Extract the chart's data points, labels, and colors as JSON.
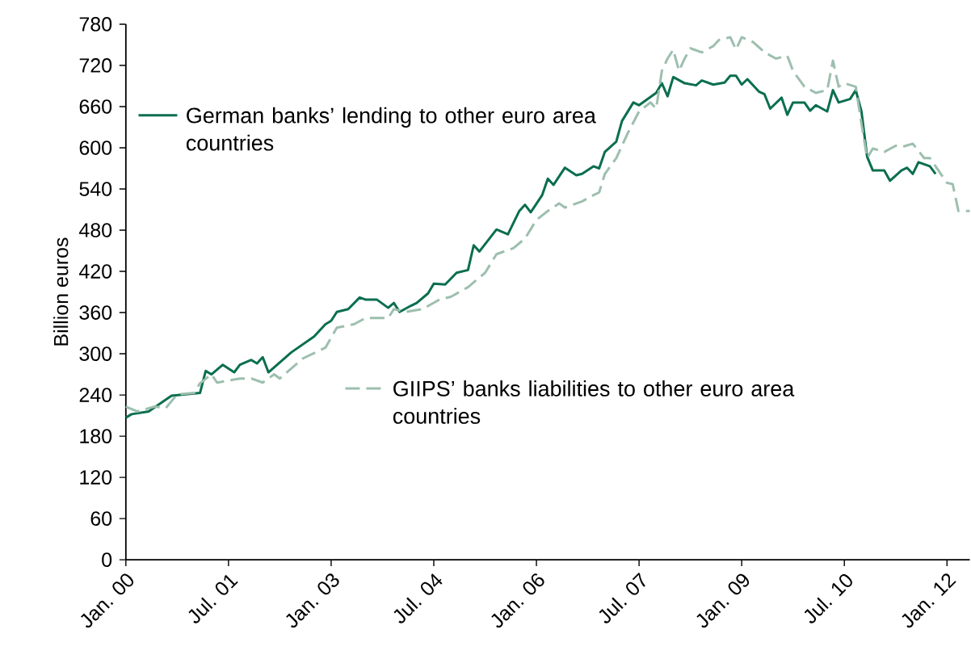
{
  "chart_data": {
    "type": "line",
    "ylabel": "Billion euros",
    "xlim": [
      "2000-01",
      "2012-05"
    ],
    "ylim": [
      0,
      780
    ],
    "xticks": [
      {
        "value": "2000-01",
        "label": "Jan. 00"
      },
      {
        "value": "2001-07",
        "label": "Jul. 01"
      },
      {
        "value": "2003-01",
        "label": "Jan. 03"
      },
      {
        "value": "2004-07",
        "label": "Jul. 04"
      },
      {
        "value": "2006-01",
        "label": "Jan. 06"
      },
      {
        "value": "2007-07",
        "label": "Jul. 07"
      },
      {
        "value": "2009-01",
        "label": "Jan. 09"
      },
      {
        "value": "2010-07",
        "label": "Jul. 10"
      },
      {
        "value": "2012-01",
        "label": "Jan. 12"
      }
    ],
    "yticks": [
      0,
      60,
      120,
      180,
      240,
      300,
      360,
      420,
      480,
      540,
      600,
      660,
      720,
      780
    ],
    "legend": "left",
    "grid": false,
    "marker": "none",
    "series": [
      {
        "name": "German banks’ lending to other euro area countries",
        "color": "#0a6e4f",
        "line_style": "solid",
        "x": [
          "2000-01",
          "2000-02",
          "2000-05",
          "2000-09",
          "2001-02",
          "2001-03",
          "2001-04",
          "2001-06",
          "2001-08",
          "2001-09",
          "2001-11",
          "2001-12",
          "2002-01",
          "2002-02",
          "2002-06",
          "2002-10",
          "2002-12",
          "2003-01",
          "2003-02",
          "2003-04",
          "2003-06",
          "2003-07",
          "2003-09",
          "2003-11",
          "2003-12",
          "2004-01",
          "2004-03",
          "2004-04",
          "2004-06",
          "2004-07",
          "2004-09",
          "2004-11",
          "2005-01",
          "2005-02",
          "2005-03",
          "2005-06",
          "2005-08",
          "2005-10",
          "2005-11",
          "2005-12",
          "2006-02",
          "2006-03",
          "2006-04",
          "2006-06",
          "2006-08",
          "2006-09",
          "2006-11",
          "2006-12",
          "2007-01",
          "2007-03",
          "2007-04",
          "2007-06",
          "2007-07",
          "2007-10",
          "2007-11",
          "2007-12",
          "2008-01",
          "2008-03",
          "2008-05",
          "2008-06",
          "2008-08",
          "2008-10",
          "2008-11",
          "2008-12",
          "2009-01",
          "2009-02",
          "2009-04",
          "2009-05",
          "2009-06",
          "2009-08",
          "2009-09",
          "2009-10",
          "2009-12",
          "2010-01",
          "2010-02",
          "2010-04",
          "2010-05",
          "2010-06",
          "2010-08",
          "2010-09",
          "2010-10",
          "2010-11",
          "2010-12",
          "2011-02",
          "2011-03",
          "2011-05",
          "2011-06",
          "2011-07",
          "2011-08",
          "2011-10",
          "2011-11"
        ],
        "values": [
          207,
          212,
          216,
          239,
          243,
          275,
          270,
          284,
          273,
          284,
          291,
          286,
          295,
          273,
          302,
          325,
          343,
          348,
          361,
          365,
          382,
          379,
          379,
          367,
          374,
          361,
          370,
          374,
          388,
          402,
          401,
          418,
          422,
          458,
          449,
          481,
          474,
          508,
          517,
          506,
          531,
          555,
          546,
          571,
          560,
          562,
          573,
          570,
          594,
          609,
          639,
          666,
          662,
          680,
          694,
          675,
          703,
          694,
          691,
          698,
          692,
          695,
          705,
          705,
          692,
          700,
          682,
          678,
          657,
          673,
          648,
          666,
          666,
          654,
          662,
          653,
          684,
          666,
          671,
          684,
          653,
          587,
          567,
          567,
          552,
          567,
          571,
          562,
          579,
          573,
          562
        ]
      },
      {
        "name": "GIIPS’ banks liabilities to other euro area countries",
        "color": "#9dbfae",
        "line_style": "dashed",
        "x": [
          "2000-01",
          "2000-03",
          "2000-06",
          "2000-08",
          "2000-10",
          "2001-01",
          "2001-02",
          "2001-04",
          "2001-05",
          "2001-09",
          "2001-11",
          "2002-01",
          "2002-03",
          "2002-04",
          "2002-08",
          "2002-12",
          "2003-02",
          "2003-05",
          "2003-07",
          "2003-11",
          "2003-12",
          "2004-02",
          "2004-05",
          "2004-08",
          "2004-10",
          "2005-01",
          "2005-04",
          "2005-06",
          "2005-09",
          "2005-11",
          "2006-01",
          "2006-03",
          "2006-05",
          "2006-06",
          "2006-09",
          "2006-11",
          "2006-12",
          "2007-01",
          "2007-03",
          "2007-05",
          "2007-07",
          "2007-09",
          "2007-10",
          "2007-11",
          "2007-12",
          "2008-01",
          "2008-02",
          "2008-03",
          "2008-04",
          "2008-06",
          "2008-08",
          "2008-09",
          "2008-11",
          "2008-12",
          "2009-01",
          "2009-03",
          "2009-05",
          "2009-07",
          "2009-09",
          "2009-10",
          "2009-12",
          "2010-02",
          "2010-04",
          "2010-05",
          "2010-06",
          "2010-07",
          "2010-09",
          "2010-10",
          "2010-11",
          "2010-12",
          "2011-02",
          "2011-04",
          "2011-05",
          "2011-07",
          "2011-09",
          "2011-10",
          "2011-11",
          "2012-01",
          "2012-02",
          "2012-03",
          "2012-05"
        ],
        "values": [
          223,
          216,
          223,
          221,
          241,
          243,
          257,
          270,
          258,
          264,
          264,
          258,
          270,
          264,
          293,
          309,
          338,
          343,
          352,
          352,
          365,
          361,
          365,
          379,
          383,
          397,
          418,
          445,
          454,
          468,
          495,
          508,
          519,
          513,
          522,
          531,
          535,
          562,
          585,
          621,
          653,
          666,
          657,
          712,
          730,
          743,
          712,
          730,
          745,
          739,
          748,
          757,
          761,
          743,
          761,
          754,
          739,
          730,
          734,
          712,
          689,
          680,
          684,
          727,
          689,
          694,
          689,
          635,
          585,
          599,
          594,
          603,
          601,
          606,
          585,
          585,
          573,
          549,
          547,
          508,
          508
        ]
      }
    ]
  }
}
